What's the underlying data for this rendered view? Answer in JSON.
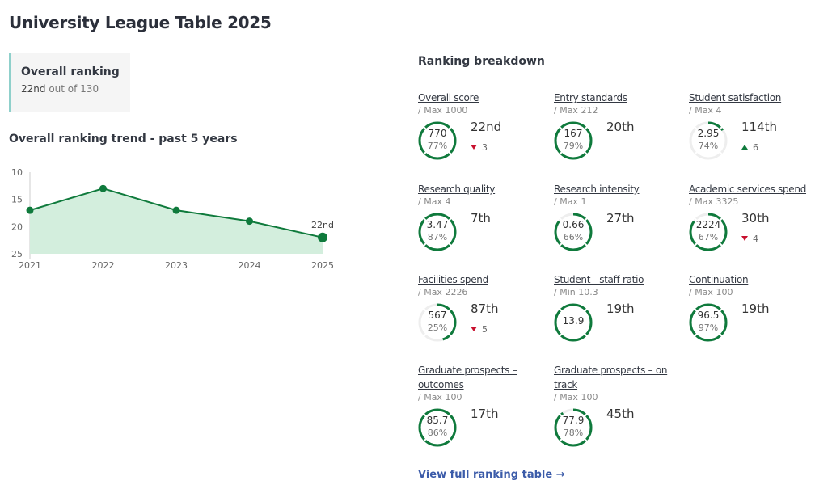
{
  "page": {
    "title": "University League Table 2025"
  },
  "overall": {
    "heading": "Overall ranking",
    "position": "22nd",
    "out_of": "out of 130"
  },
  "trend": {
    "heading": "Overall ranking trend - past 5 years"
  },
  "chart_data": {
    "type": "area",
    "x": [
      "2021",
      "2022",
      "2023",
      "2024",
      "2025"
    ],
    "values": [
      17,
      13,
      17,
      19,
      22
    ],
    "y_ticks": [
      "10",
      "15",
      "20",
      "25"
    ],
    "ylim": [
      10,
      25
    ],
    "y_inverted": true,
    "annotation": "22nd",
    "line_color": "#0f7a3c",
    "fill_color": "#d3eedd"
  },
  "breakdown": {
    "heading": "Ranking breakdown",
    "metrics": [
      {
        "name": "Overall score",
        "max": "/ Max 1000",
        "value": "770",
        "pct": "77%",
        "position": "22nd",
        "change": "3",
        "direction": "down",
        "arc": 1.0
      },
      {
        "name": "Entry standards",
        "max": "/ Max 212",
        "value": "167",
        "pct": "79%",
        "position": "20th",
        "change": "",
        "direction": "",
        "arc": 1.0
      },
      {
        "name": "Student satisfaction",
        "max": "/ Max 4",
        "value": "2.95",
        "pct": "74%",
        "position": "114th",
        "change": "6",
        "direction": "up",
        "arc": 0.15
      },
      {
        "name": "Research quality",
        "max": "/ Max 4",
        "value": "3.47",
        "pct": "87%",
        "position": "7th",
        "change": "",
        "direction": "",
        "arc": 1.0
      },
      {
        "name": "Research intensity",
        "max": "/ Max 1",
        "value": "0.66",
        "pct": "66%",
        "position": "27th",
        "change": "",
        "direction": "",
        "arc": 0.85
      },
      {
        "name": "Academic services spend",
        "max": "/ Max 3325",
        "value": "2224",
        "pct": "67%",
        "position": "30th",
        "change": "4",
        "direction": "down",
        "arc": 0.85
      },
      {
        "name": "Facilities spend",
        "max": "/ Max 2226",
        "value": "567",
        "pct": "25%",
        "position": "87th",
        "change": "5",
        "direction": "down",
        "arc": 0.45
      },
      {
        "name": "Student - staff ratio",
        "max": "/ Min 10.3",
        "value": "13.9",
        "pct": "",
        "position": "19th",
        "change": "",
        "direction": "",
        "arc": 1.0
      },
      {
        "name": "Continuation",
        "max": "/ Max 100",
        "value": "96.5",
        "pct": "97%",
        "position": "19th",
        "change": "",
        "direction": "",
        "arc": 1.0
      },
      {
        "name": "Graduate prospects – outcomes",
        "max": "/ Max 100",
        "value": "85.7",
        "pct": "86%",
        "position": "17th",
        "change": "",
        "direction": "",
        "arc": 1.0
      },
      {
        "name": "Graduate prospects – on track",
        "max": "/ Max 100",
        "value": "77.9",
        "pct": "78%",
        "position": "45th",
        "change": "",
        "direction": "",
        "arc": 0.9
      }
    ]
  },
  "footer": {
    "link": "View full ranking table →"
  }
}
